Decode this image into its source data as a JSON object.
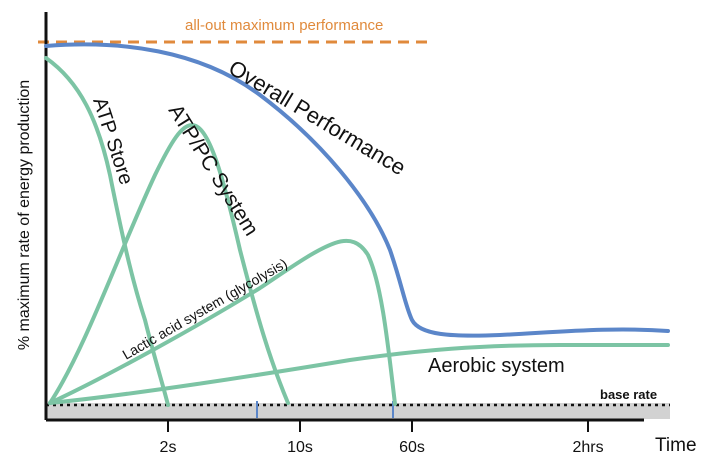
{
  "chart_data": {
    "type": "line",
    "ylabel": "% maximum rate of energy production",
    "xlabel": "Time",
    "x_ticks": [
      "2s",
      "10s",
      "60s",
      "2hrs"
    ],
    "reference_lines": [
      {
        "label": "all-out maximum performance",
        "color": "#e08a3c",
        "style": "dashed"
      },
      {
        "label": "base rate",
        "color": "#111111",
        "style": "dotted"
      }
    ],
    "series": [
      {
        "name": "Overall Performance",
        "color": "#5b86c9"
      },
      {
        "name": "ATP Store",
        "color": "#7cc4a4"
      },
      {
        "name": "ATP/PC System",
        "color": "#7cc4a4"
      },
      {
        "name": "Lactic acid system (glycolysis)",
        "color": "#7cc4a4"
      },
      {
        "name": "Aerobic system",
        "color": "#7cc4a4"
      }
    ],
    "grid": false
  }
}
